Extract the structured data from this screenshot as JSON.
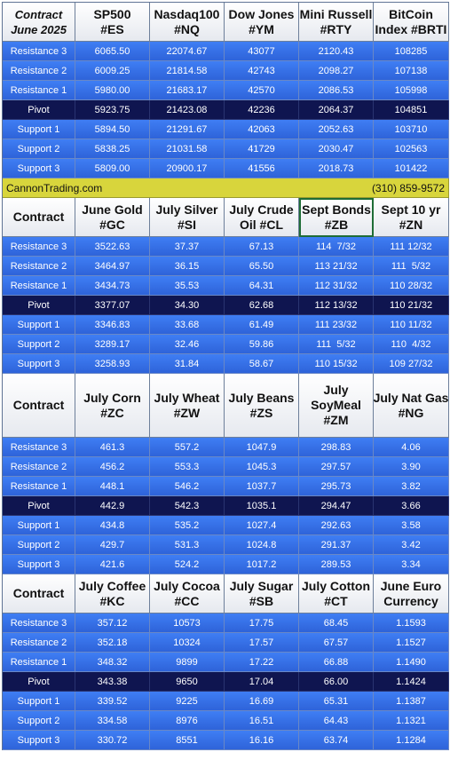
{
  "banner": {
    "left": "CannonTrading.com",
    "right": "(310) 859-9572"
  },
  "tables": [
    {
      "headers": [
        [
          "Contract",
          "June 2025"
        ],
        [
          "SP500",
          "#ES"
        ],
        [
          "Nasdaq100",
          "#NQ"
        ],
        [
          "Dow Jones",
          "#YM"
        ],
        [
          "Mini Russell",
          "#RTY"
        ],
        [
          "BitCoin",
          "Index #BRTI"
        ]
      ],
      "rows": [
        {
          "label": "Resistance 3",
          "values": [
            "6065.50",
            "22074.67",
            "43077",
            "2120.43",
            "108285"
          ]
        },
        {
          "label": "Resistance 2",
          "values": [
            "6009.25",
            "21814.58",
            "42743",
            "2098.27",
            "107138"
          ]
        },
        {
          "label": "Resistance 1",
          "values": [
            "5980.00",
            "21683.17",
            "42570",
            "2086.53",
            "105998"
          ]
        },
        {
          "label": "Pivot",
          "values": [
            "5923.75",
            "21423.08",
            "42236",
            "2064.37",
            "104851"
          ]
        },
        {
          "label": "Support 1",
          "values": [
            "5894.50",
            "21291.67",
            "42063",
            "2052.63",
            "103710"
          ]
        },
        {
          "label": "Support 2",
          "values": [
            "5838.25",
            "21031.58",
            "41729",
            "2030.47",
            "102563"
          ]
        },
        {
          "label": "Support 3",
          "values": [
            "5809.00",
            "20900.17",
            "41556",
            "2018.73",
            "101422"
          ]
        }
      ]
    },
    {
      "headers": [
        [
          "Contract"
        ],
        [
          "June Gold",
          "#GC"
        ],
        [
          "July Silver",
          "#SI"
        ],
        [
          "July Crude",
          "Oil #CL"
        ],
        [
          "Sept Bonds",
          "#ZB"
        ],
        [
          "Sept 10 yr",
          "#ZN"
        ]
      ],
      "rows": [
        {
          "label": "Resistance 3",
          "values": [
            "3522.63",
            "37.37",
            "67.13",
            "114  7/32",
            "111 12/32"
          ]
        },
        {
          "label": "Resistance 2",
          "values": [
            "3464.97",
            "36.15",
            "65.50",
            "113 21/32",
            "111  5/32"
          ]
        },
        {
          "label": "Resistance 1",
          "values": [
            "3434.73",
            "35.53",
            "64.31",
            "112 31/32",
            "110 28/32"
          ]
        },
        {
          "label": "Pivot",
          "values": [
            "3377.07",
            "34.30",
            "62.68",
            "112 13/32",
            "110 21/32"
          ]
        },
        {
          "label": "Support 1",
          "values": [
            "3346.83",
            "33.68",
            "61.49",
            "111 23/32",
            "110 11/32"
          ]
        },
        {
          "label": "Support 2",
          "values": [
            "3289.17",
            "32.46",
            "59.86",
            "111  5/32",
            "110  4/32"
          ]
        },
        {
          "label": "Support 3",
          "values": [
            "3258.93",
            "31.84",
            "58.67",
            "110 15/32",
            "109 27/32"
          ]
        }
      ]
    },
    {
      "headers": [
        [
          "Contract"
        ],
        [
          "July Corn",
          "#ZC"
        ],
        [
          "July  Wheat",
          "#ZW"
        ],
        [
          "July Beans",
          "#ZS"
        ],
        [
          "July",
          "SoyMeal",
          "#ZM"
        ],
        [
          "July Nat Gas",
          "#NG"
        ]
      ],
      "rows": [
        {
          "label": "Resistance 3",
          "values": [
            "461.3",
            "557.2",
            "1047.9",
            "298.83",
            "4.06"
          ]
        },
        {
          "label": "Resistance 2",
          "values": [
            "456.2",
            "553.3",
            "1045.3",
            "297.57",
            "3.90"
          ]
        },
        {
          "label": "Resistance 1",
          "values": [
            "448.1",
            "546.2",
            "1037.7",
            "295.73",
            "3.82"
          ]
        },
        {
          "label": "Pivot",
          "values": [
            "442.9",
            "542.3",
            "1035.1",
            "294.47",
            "3.66"
          ]
        },
        {
          "label": "Support 1",
          "values": [
            "434.8",
            "535.2",
            "1027.4",
            "292.63",
            "3.58"
          ]
        },
        {
          "label": "Support 2",
          "values": [
            "429.7",
            "531.3",
            "1024.8",
            "291.37",
            "3.42"
          ]
        },
        {
          "label": "Support 3",
          "values": [
            "421.6",
            "524.2",
            "1017.2",
            "289.53",
            "3.34"
          ]
        }
      ]
    },
    {
      "headers": [
        [
          "Contract"
        ],
        [
          "July Coffee",
          "#KC"
        ],
        [
          "July Cocoa",
          "#CC"
        ],
        [
          "July Sugar",
          "#SB"
        ],
        [
          "July Cotton",
          "#CT"
        ],
        [
          "June Euro",
          "Currency"
        ]
      ],
      "rows": [
        {
          "label": "Resistance 3",
          "values": [
            "357.12",
            "10573",
            "17.75",
            "68.45",
            "1.1593"
          ]
        },
        {
          "label": "Resistance 2",
          "values": [
            "352.18",
            "10324",
            "17.57",
            "67.57",
            "1.1527"
          ]
        },
        {
          "label": "Resistance 1",
          "values": [
            "348.32",
            "9899",
            "17.22",
            "66.88",
            "1.1490"
          ]
        },
        {
          "label": "Pivot",
          "values": [
            "343.38",
            "9650",
            "17.04",
            "66.00",
            "1.1424"
          ]
        },
        {
          "label": "Support 1",
          "values": [
            "339.52",
            "9225",
            "16.69",
            "65.31",
            "1.1387"
          ]
        },
        {
          "label": "Support 2",
          "values": [
            "334.58",
            "8976",
            "16.51",
            "64.43",
            "1.1321"
          ]
        },
        {
          "label": "Support 3",
          "values": [
            "330.72",
            "8551",
            "16.16",
            "63.74",
            "1.1284"
          ]
        }
      ]
    }
  ]
}
